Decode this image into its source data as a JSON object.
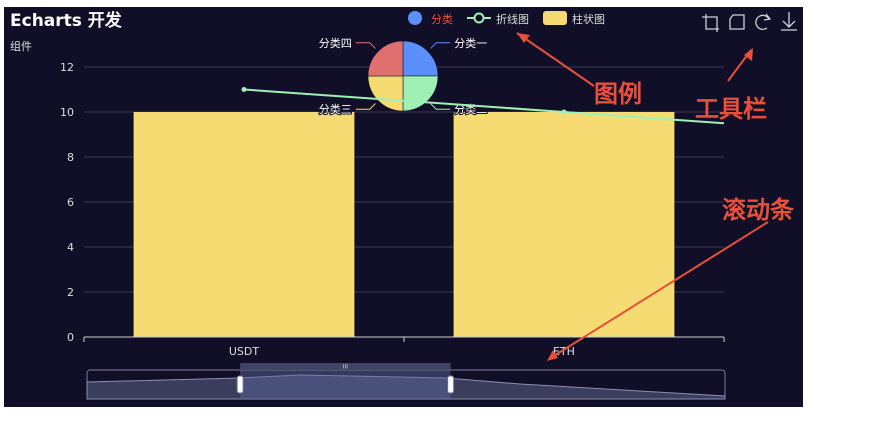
{
  "page": {
    "title": "Echarts 开发",
    "subtitle": "组件"
  },
  "legend": {
    "items": [
      {
        "label": "分类",
        "marker": "circle",
        "color": "#5b8ff9",
        "text_color": "#e8503a"
      },
      {
        "label": "折线图",
        "marker": "line-circle",
        "color": "#9ef0b4",
        "text_color": "#dddddd"
      },
      {
        "label": "柱状图",
        "marker": "rect",
        "color": "#f6db73",
        "text_color": "#dddddd"
      }
    ]
  },
  "toolbox": {
    "icons": [
      "crop-icon",
      "undo-icon",
      "refresh-icon",
      "download-icon"
    ]
  },
  "annotations": {
    "legend_label": "图例",
    "toolbox_label": "工具栏",
    "scrollbar_label": "滚动条",
    "color": "#e8503a"
  },
  "chart_data": [
    {
      "type": "bar",
      "categories": [
        "USDT",
        "ETH"
      ],
      "series": [
        {
          "name": "柱状图",
          "values": [
            10,
            10
          ],
          "color": "#f6db73"
        }
      ],
      "ylim": [
        0,
        12
      ],
      "yticks": [
        0,
        2,
        4,
        6,
        8,
        10,
        12
      ],
      "grid": true
    },
    {
      "type": "line",
      "series": [
        {
          "name": "折线图",
          "x": [
            "USDT",
            "ETH"
          ],
          "values": [
            11,
            10
          ],
          "color": "#9ef0b4"
        }
      ]
    },
    {
      "type": "pie",
      "slices": [
        {
          "label": "分类一",
          "value": 1,
          "color": "#5b8ff9"
        },
        {
          "label": "分类二",
          "value": 1,
          "color": "#9ef0b4"
        },
        {
          "label": "分类三",
          "value": 1,
          "color": "#f6db73"
        },
        {
          "label": "分类四",
          "value": 1,
          "color": "#e07070"
        }
      ]
    }
  ],
  "datazoom": {
    "start": 0.24,
    "end": 0.57
  },
  "colors": {
    "background": "#110f27",
    "axis_label": "#dddddd",
    "grid_line": "#3a3950"
  }
}
